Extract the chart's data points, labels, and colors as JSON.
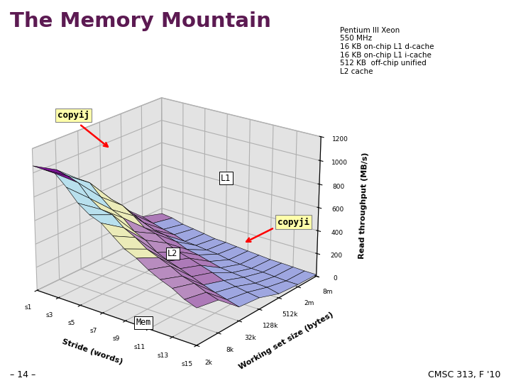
{
  "title": "The Memory Mountain",
  "title_color": "#5c1a52",
  "ylabel": "Read throughput (MB/s)",
  "xlabel": "Stride (words)",
  "zlabel": "Working set size (bytes)",
  "stride_labels": [
    "s1",
    "s3",
    "s5",
    "s7",
    "s9",
    "s11",
    "s13",
    "s15"
  ],
  "size_labels": [
    "2k",
    "8k",
    "32k",
    "128k",
    "512k",
    "2m",
    "8m"
  ],
  "ylim": [
    0,
    1200
  ],
  "yticks": [
    0,
    200,
    400,
    600,
    800,
    1000,
    1200
  ],
  "info_text": "Pentium III Xeon\n550 MHz\n16 KB on-chip L1 d-cache\n16 KB on-chip L1 i-cache\n512 KB  off-chip unified\nL2 cache",
  "footer_left": "– 14 –",
  "footer_right": "CMSC 313, F '10",
  "annotation_copyij": "copyij",
  "annotation_copyji": "copyji",
  "annotation_l1": "L1",
  "annotation_l2": "L2",
  "annotation_mem": "Mem",
  "bg_color": "#ffffff",
  "pane_color": "#c8c8c8"
}
